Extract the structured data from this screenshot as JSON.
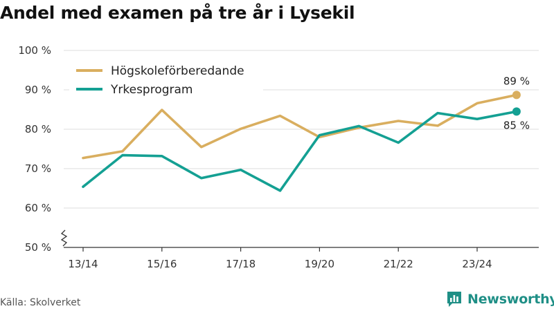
{
  "title": "Andel med examen på tre år i Lysekil",
  "source": "Källa: Skolverket",
  "brand": "Newsworthy",
  "colors": {
    "hogskole": "#d9ae5f",
    "yrkes": "#14a093",
    "grid": "#dddddd",
    "brand": "#1f8f86"
  },
  "chart_data": {
    "type": "line",
    "x": [
      "13/14",
      "14/15",
      "15/16",
      "16/17",
      "17/18",
      "18/19",
      "19/20",
      "20/21",
      "21/22",
      "22/23",
      "23/24",
      "24/25"
    ],
    "x_tick_labels": [
      "13/14",
      "15/16",
      "17/18",
      "19/20",
      "21/22",
      "23/24"
    ],
    "y_tick_labels": [
      "50 %",
      "60 %",
      "70 %",
      "80 %",
      "90 %",
      "100 %"
    ],
    "y_ticks": [
      50,
      60,
      70,
      80,
      90,
      100
    ],
    "ylim": [
      50,
      100
    ],
    "axis_break": true,
    "grid": true,
    "legend_position": "top-left",
    "series": [
      {
        "name": "Högskoleförberedande",
        "color": "#d9ae5f",
        "values": [
          72.7,
          74.4,
          84.9,
          75.5,
          80.1,
          83.4,
          78.0,
          80.4,
          82.1,
          80.9,
          86.6,
          88.7
        ],
        "end_label": "89 %"
      },
      {
        "name": "Yrkesprogram",
        "color": "#14a093",
        "values": [
          65.4,
          73.4,
          73.2,
          67.6,
          69.7,
          64.4,
          78.5,
          80.8,
          76.6,
          84.1,
          82.6,
          84.5
        ],
        "end_label": "85 %"
      }
    ]
  }
}
